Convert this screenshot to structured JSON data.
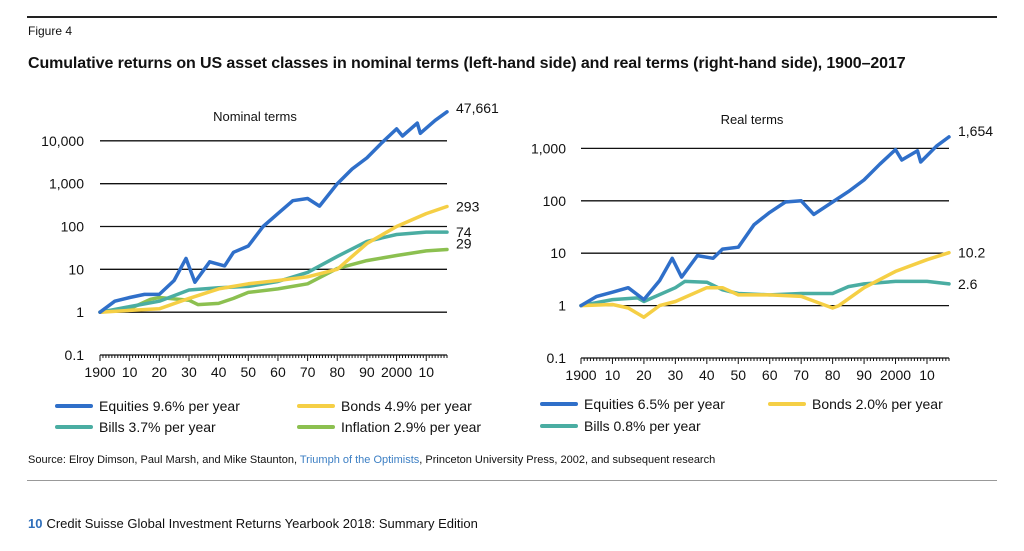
{
  "figure_label": "Figure 4",
  "title": "Cumulative returns on US asset classes in nominal terms (left-hand side) and real terms (right-hand side), 1900–2017",
  "source": {
    "prefix": "Source: Elroy Dimson, Paul Marsh, and Mike Staunton, ",
    "link_text": "Triumph of the Optimists",
    "suffix": ", Princeton University Press, 2002, and subsequent research"
  },
  "footer": {
    "page_number": "10",
    "text": "Credit Suisse Global Investment Returns Yearbook 2018: Summary Edition"
  },
  "colors": {
    "equities": "#2f6fc9",
    "bonds": "#f5cf45",
    "bills": "#4aada2",
    "inflation": "#8cc050"
  },
  "chart_data": [
    {
      "type": "line",
      "title": "Nominal terms",
      "y_scale": "log",
      "ylim": [
        0.1,
        100000
      ],
      "y_ticks": [
        "0.1",
        "1",
        "10",
        "100",
        "1,000",
        "10,000"
      ],
      "y_tick_values": [
        0.1,
        1,
        10,
        100,
        1000,
        10000
      ],
      "x_ticks": [
        "1900",
        "10",
        "20",
        "30",
        "40",
        "50",
        "60",
        "70",
        "80",
        "90",
        "2000",
        "10"
      ],
      "x_tick_values": [
        1900,
        1910,
        1920,
        1930,
        1940,
        1950,
        1960,
        1970,
        1980,
        1990,
        2000,
        2010
      ],
      "xlim": [
        1900,
        2017
      ],
      "series": [
        {
          "key": "equities",
          "name": "Equities  9.6% per year",
          "end_label": "47,661",
          "x": [
            1900,
            1905,
            1910,
            1915,
            1920,
            1925,
            1929,
            1932,
            1937,
            1942,
            1945,
            1950,
            1955,
            1960,
            1965,
            1970,
            1974,
            1980,
            1985,
            1990,
            1995,
            2000,
            2002,
            2007,
            2008,
            2013,
            2017
          ],
          "y": [
            1,
            1.8,
            2.2,
            2.6,
            2.6,
            5.5,
            18,
            5,
            15,
            12,
            25,
            35,
            100,
            200,
            400,
            450,
            300,
            1000,
            2200,
            4000,
            9000,
            19000,
            13000,
            26000,
            15000,
            30000,
            47661
          ]
        },
        {
          "key": "bonds",
          "name": "Bonds  4.9% per year",
          "end_label": "293",
          "x": [
            1900,
            1910,
            1920,
            1930,
            1940,
            1950,
            1960,
            1970,
            1980,
            1990,
            2000,
            2010,
            2017
          ],
          "y": [
            1,
            1.1,
            1.2,
            2.1,
            3.5,
            4.6,
            5.5,
            6.7,
            10,
            40,
            100,
            200,
            293
          ]
        },
        {
          "key": "bills",
          "name": "Bills  3.7% per year",
          "end_label": "74",
          "x": [
            1900,
            1910,
            1920,
            1930,
            1940,
            1950,
            1960,
            1970,
            1980,
            1990,
            2000,
            2010,
            2017
          ],
          "y": [
            1,
            1.35,
            1.8,
            3.3,
            3.7,
            4,
            5.2,
            8.5,
            20,
            45,
            65,
            74,
            74
          ]
        },
        {
          "key": "inflation",
          "name": "Inflation  2.9% per year",
          "end_label": "29",
          "x": [
            1900,
            1910,
            1917,
            1920,
            1930,
            1933,
            1940,
            1945,
            1950,
            1960,
            1970,
            1980,
            1990,
            2000,
            2010,
            2017
          ],
          "y": [
            1,
            1.2,
            2,
            2.2,
            1.9,
            1.5,
            1.6,
            2.1,
            2.9,
            3.5,
            4.6,
            10.5,
            16,
            21,
            27,
            29
          ]
        }
      ]
    },
    {
      "type": "line",
      "title": "Real terms",
      "y_scale": "log",
      "ylim": [
        0.1,
        10000
      ],
      "y_ticks": [
        "0.1",
        "1",
        "10",
        "100",
        "1,000"
      ],
      "y_tick_values": [
        0.1,
        1,
        10,
        100,
        1000
      ],
      "x_ticks": [
        "1900",
        "10",
        "20",
        "30",
        "40",
        "50",
        "60",
        "70",
        "80",
        "90",
        "2000",
        "10"
      ],
      "x_tick_values": [
        1900,
        1910,
        1920,
        1930,
        1940,
        1950,
        1960,
        1970,
        1980,
        1990,
        2000,
        2010
      ],
      "xlim": [
        1900,
        2017
      ],
      "series": [
        {
          "key": "equities",
          "name": "Equities  6.5% per year",
          "end_label": "1,654",
          "x": [
            1900,
            1905,
            1910,
            1915,
            1920,
            1925,
            1929,
            1932,
            1937,
            1942,
            1945,
            1950,
            1955,
            1960,
            1965,
            1970,
            1974,
            1980,
            1985,
            1990,
            1995,
            2000,
            2002,
            2007,
            2008,
            2013,
            2017
          ],
          "y": [
            1,
            1.5,
            1.8,
            2.2,
            1.3,
            3,
            8,
            3.5,
            9,
            8,
            12,
            13,
            35,
            60,
            95,
            100,
            55,
            95,
            150,
            250,
            500,
            950,
            600,
            900,
            550,
            1100,
            1654
          ]
        },
        {
          "key": "bonds",
          "name": "Bonds 2.0% per year",
          "end_label": "10.2",
          "x": [
            1900,
            1910,
            1915,
            1920,
            1925,
            1930,
            1940,
            1945,
            1950,
            1960,
            1970,
            1980,
            1982,
            1990,
            2000,
            2010,
            2017
          ],
          "y": [
            1,
            1.05,
            0.9,
            0.6,
            1.0,
            1.2,
            2.2,
            2.2,
            1.6,
            1.6,
            1.5,
            0.9,
            1.0,
            2.2,
            4.5,
            7.5,
            10.2
          ]
        },
        {
          "key": "bills",
          "name": "Bills 0.8% per year",
          "end_label": "2.6",
          "x": [
            1900,
            1910,
            1918,
            1920,
            1930,
            1933,
            1940,
            1945,
            1950,
            1960,
            1970,
            1980,
            1985,
            1990,
            2000,
            2010,
            2017
          ],
          "y": [
            1,
            1.3,
            1.4,
            1.2,
            2.2,
            2.9,
            2.8,
            2.0,
            1.7,
            1.6,
            1.7,
            1.7,
            2.3,
            2.6,
            2.9,
            2.9,
            2.6
          ]
        }
      ]
    }
  ]
}
